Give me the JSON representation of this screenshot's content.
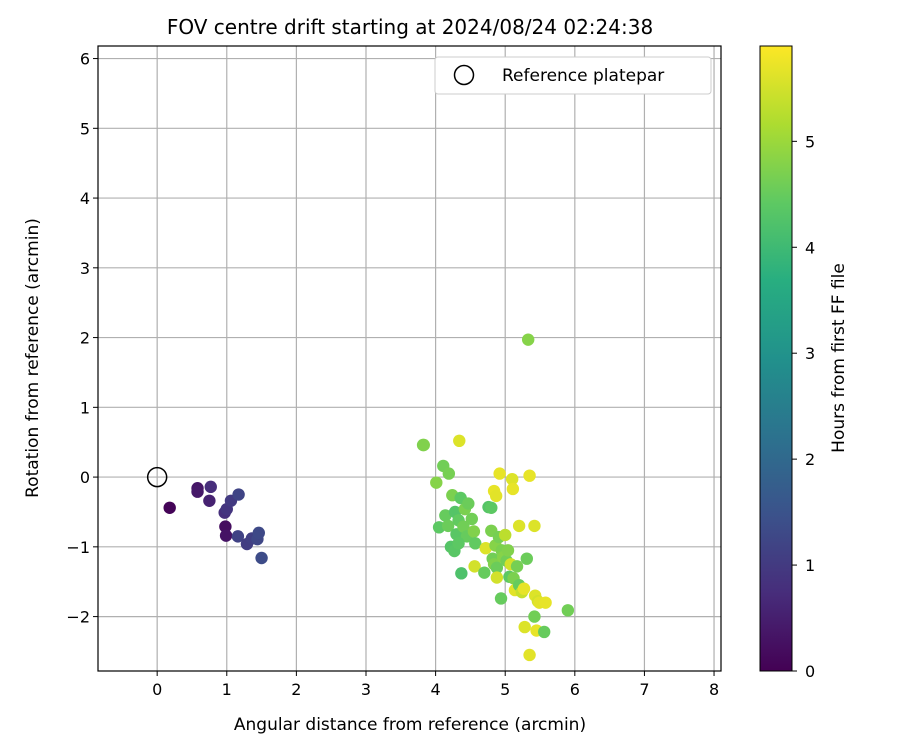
{
  "chart_data": {
    "type": "scatter",
    "title": "FOV centre drift starting at 2024/08/24 02:24:38",
    "xlabel": "Angular distance from reference (arcmin)",
    "ylabel": "Rotation from reference (arcmin)",
    "xlim": [
      -0.85,
      8.1
    ],
    "ylim": [
      -2.78,
      6.18
    ],
    "xticks": [
      0,
      1,
      2,
      3,
      4,
      5,
      6,
      7,
      8
    ],
    "yticks": [
      -2,
      -1,
      0,
      1,
      2,
      3,
      4,
      5,
      6
    ],
    "xtick_labels": [
      "0",
      "1",
      "2",
      "3",
      "4",
      "5",
      "6",
      "7",
      "8"
    ],
    "ytick_labels": [
      "−2",
      "−1",
      "0",
      "1",
      "2",
      "3",
      "4",
      "5",
      "6"
    ],
    "grid": true,
    "legend_position": "top-right",
    "legend": [
      {
        "label": "Reference platepar",
        "marker": "open-circle"
      }
    ],
    "reference_point": {
      "x": 0,
      "y": 0
    },
    "colorbar": {
      "label": "Hours from first FF file",
      "colormap": "viridis",
      "range": [
        0,
        5.9
      ],
      "ticks": [
        0,
        1,
        2,
        3,
        4,
        5
      ],
      "tick_labels": [
        "0",
        "1",
        "2",
        "3",
        "4",
        "5"
      ]
    },
    "points": [
      {
        "x": 0.18,
        "y": -0.44,
        "hours": 0.05
      },
      {
        "x": 0.58,
        "y": -0.16,
        "hours": 0.35
      },
      {
        "x": 0.58,
        "y": -0.21,
        "hours": 0.4
      },
      {
        "x": 0.75,
        "y": -0.34,
        "hours": 0.55
      },
      {
        "x": 0.77,
        "y": -0.14,
        "hours": 0.75
      },
      {
        "x": 0.98,
        "y": -0.71,
        "hours": 0.2
      },
      {
        "x": 0.99,
        "y": -0.84,
        "hours": 0.3
      },
      {
        "x": 0.97,
        "y": -0.51,
        "hours": 0.8
      },
      {
        "x": 1.0,
        "y": -0.46,
        "hours": 0.9
      },
      {
        "x": 1.06,
        "y": -0.34,
        "hours": 1.0
      },
      {
        "x": 1.17,
        "y": -0.25,
        "hours": 1.2
      },
      {
        "x": 1.16,
        "y": -0.85,
        "hours": 1.15
      },
      {
        "x": 1.29,
        "y": -0.96,
        "hours": 1.05
      },
      {
        "x": 1.36,
        "y": -0.88,
        "hours": 1.1
      },
      {
        "x": 1.44,
        "y": -0.89,
        "hours": 1.25
      },
      {
        "x": 1.46,
        "y": -0.8,
        "hours": 1.3
      },
      {
        "x": 1.5,
        "y": -1.16,
        "hours": 1.35
      },
      {
        "x": 3.82,
        "y": 0.46,
        "hours": 4.7
      },
      {
        "x": 3.83,
        "y": 0.46,
        "hours": 4.75
      },
      {
        "x": 4.01,
        "y": -0.08,
        "hours": 4.8
      },
      {
        "x": 4.11,
        "y": 0.16,
        "hours": 4.6
      },
      {
        "x": 4.19,
        "y": 0.05,
        "hours": 4.65
      },
      {
        "x": 4.34,
        "y": 0.52,
        "hours": 5.6
      },
      {
        "x": 4.05,
        "y": -0.72,
        "hours": 4.4
      },
      {
        "x": 4.14,
        "y": -0.55,
        "hours": 4.5
      },
      {
        "x": 4.18,
        "y": -0.7,
        "hours": 4.55
      },
      {
        "x": 4.24,
        "y": -0.26,
        "hours": 4.7
      },
      {
        "x": 4.28,
        "y": -0.5,
        "hours": 4.3
      },
      {
        "x": 4.3,
        "y": -0.82,
        "hours": 4.35
      },
      {
        "x": 4.33,
        "y": -0.62,
        "hours": 4.45
      },
      {
        "x": 4.36,
        "y": -0.3,
        "hours": 4.4
      },
      {
        "x": 4.4,
        "y": -0.71,
        "hours": 4.6
      },
      {
        "x": 4.42,
        "y": -0.46,
        "hours": 4.7
      },
      {
        "x": 4.45,
        "y": -0.85,
        "hours": 4.5
      },
      {
        "x": 4.47,
        "y": -0.38,
        "hours": 4.55
      },
      {
        "x": 4.52,
        "y": -0.6,
        "hours": 4.6
      },
      {
        "x": 4.55,
        "y": -0.78,
        "hours": 4.75
      },
      {
        "x": 4.22,
        "y": -1.0,
        "hours": 4.3
      },
      {
        "x": 4.27,
        "y": -1.06,
        "hours": 4.35
      },
      {
        "x": 4.33,
        "y": -0.95,
        "hours": 4.4
      },
      {
        "x": 4.37,
        "y": -1.38,
        "hours": 4.2
      },
      {
        "x": 4.57,
        "y": -0.95,
        "hours": 4.45
      },
      {
        "x": 4.56,
        "y": -1.28,
        "hours": 5.5
      },
      {
        "x": 4.7,
        "y": -1.37,
        "hours": 4.5
      },
      {
        "x": 4.72,
        "y": -1.02,
        "hours": 5.6
      },
      {
        "x": 4.76,
        "y": -0.43,
        "hours": 4.3
      },
      {
        "x": 4.8,
        "y": -0.44,
        "hours": 4.4
      },
      {
        "x": 4.8,
        "y": -0.77,
        "hours": 4.7
      },
      {
        "x": 4.82,
        "y": -1.17,
        "hours": 4.6
      },
      {
        "x": 4.84,
        "y": -1.25,
        "hours": 4.75
      },
      {
        "x": 4.86,
        "y": -0.98,
        "hours": 4.8
      },
      {
        "x": 4.88,
        "y": -1.3,
        "hours": 4.55
      },
      {
        "x": 4.84,
        "y": -0.2,
        "hours": 5.7
      },
      {
        "x": 4.87,
        "y": -0.27,
        "hours": 5.65
      },
      {
        "x": 4.88,
        "y": -1.44,
        "hours": 5.5
      },
      {
        "x": 4.91,
        "y": -0.86,
        "hours": 4.65
      },
      {
        "x": 4.92,
        "y": 0.05,
        "hours": 5.7
      },
      {
        "x": 4.94,
        "y": -1.74,
        "hours": 4.5
      },
      {
        "x": 4.95,
        "y": -1.05,
        "hours": 4.7
      },
      {
        "x": 4.97,
        "y": -1.15,
        "hours": 4.8
      },
      {
        "x": 5.0,
        "y": -0.83,
        "hours": 5.3
      },
      {
        "x": 5.02,
        "y": -1.2,
        "hours": 4.6
      },
      {
        "x": 5.04,
        "y": -1.05,
        "hours": 4.75
      },
      {
        "x": 5.06,
        "y": -1.43,
        "hours": 4.4
      },
      {
        "x": 5.08,
        "y": -1.25,
        "hours": 5.5
      },
      {
        "x": 5.1,
        "y": -0.03,
        "hours": 5.6
      },
      {
        "x": 5.11,
        "y": -0.17,
        "hours": 5.7
      },
      {
        "x": 5.12,
        "y": -1.45,
        "hours": 4.7
      },
      {
        "x": 5.14,
        "y": -1.62,
        "hours": 5.65
      },
      {
        "x": 5.17,
        "y": -1.28,
        "hours": 4.65
      },
      {
        "x": 5.2,
        "y": -1.55,
        "hours": 4.5
      },
      {
        "x": 5.2,
        "y": -0.7,
        "hours": 5.6
      },
      {
        "x": 5.24,
        "y": -1.65,
        "hours": 5.4
      },
      {
        "x": 5.27,
        "y": -1.6,
        "hours": 5.7
      },
      {
        "x": 5.28,
        "y": -2.15,
        "hours": 5.6
      },
      {
        "x": 5.31,
        "y": -1.17,
        "hours": 4.55
      },
      {
        "x": 5.33,
        "y": 1.97,
        "hours": 4.8
      },
      {
        "x": 5.35,
        "y": 0.02,
        "hours": 5.7
      },
      {
        "x": 5.35,
        "y": -2.55,
        "hours": 5.65
      },
      {
        "x": 5.42,
        "y": -0.7,
        "hours": 5.6
      },
      {
        "x": 5.42,
        "y": -2.0,
        "hours": 4.6
      },
      {
        "x": 5.43,
        "y": -1.7,
        "hours": 5.6
      },
      {
        "x": 5.45,
        "y": -2.2,
        "hours": 5.7
      },
      {
        "x": 5.47,
        "y": -1.78,
        "hours": 5.5
      },
      {
        "x": 5.49,
        "y": -1.8,
        "hours": 5.65
      },
      {
        "x": 5.56,
        "y": -2.22,
        "hours": 4.5
      },
      {
        "x": 5.58,
        "y": -1.8,
        "hours": 5.7
      },
      {
        "x": 5.9,
        "y": -1.91,
        "hours": 4.6
      }
    ]
  }
}
